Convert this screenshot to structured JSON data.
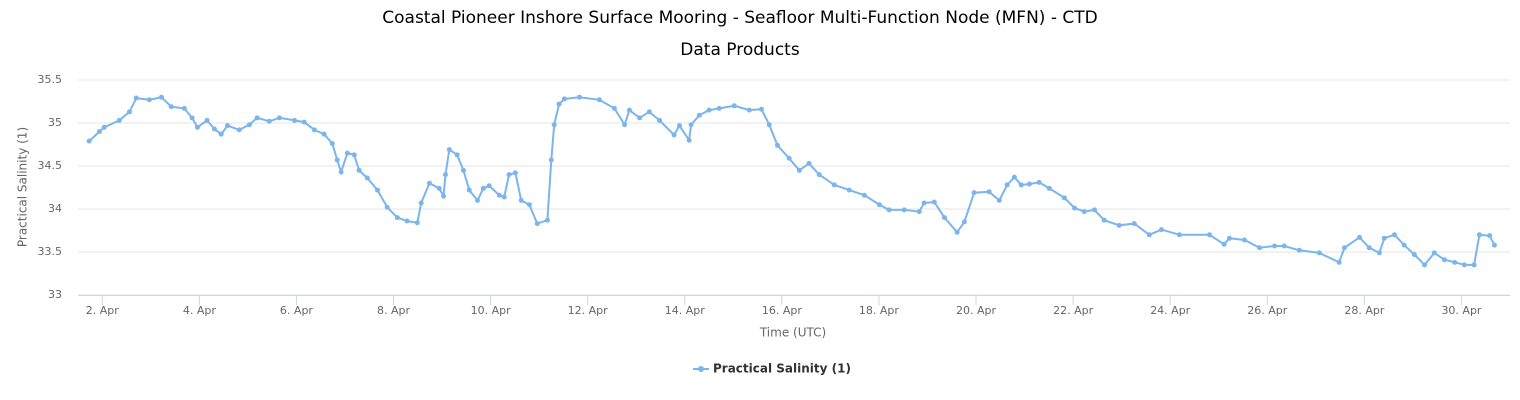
{
  "chart_data": {
    "type": "line",
    "title": "Coastal Pioneer Inshore Surface Mooring - Seafloor Multi-Function Node (MFN) - CTD",
    "subtitle": "Data Products",
    "x_label": "Time (UTC)",
    "y_label": "Practical Salinity (1)",
    "xlim": [
      1.5,
      31
    ],
    "xticks": [
      {
        "value": 2,
        "label": "2. Apr"
      },
      {
        "value": 4,
        "label": "4. Apr"
      },
      {
        "value": 6,
        "label": "6. Apr"
      },
      {
        "value": 8,
        "label": "8. Apr"
      },
      {
        "value": 10,
        "label": "10. Apr"
      },
      {
        "value": 12,
        "label": "12. Apr"
      },
      {
        "value": 14,
        "label": "14. Apr"
      },
      {
        "value": 16,
        "label": "16. Apr"
      },
      {
        "value": 18,
        "label": "18. Apr"
      },
      {
        "value": 20,
        "label": "20. Apr"
      },
      {
        "value": 22,
        "label": "22. Apr"
      },
      {
        "value": 24,
        "label": "24. Apr"
      },
      {
        "value": 26,
        "label": "26. Apr"
      },
      {
        "value": 28,
        "label": "28. Apr"
      },
      {
        "value": 30,
        "label": "30. Apr"
      }
    ],
    "ylim": [
      33,
      35.5
    ],
    "yticks": [
      33,
      33.5,
      34,
      34.5,
      35,
      35.5
    ],
    "grid": true,
    "legend": "bottom",
    "series": [
      {
        "name": "Practical Salinity (1)",
        "color": "#7cb5ec",
        "x": [
          1.73,
          1.94,
          2.04,
          2.35,
          2.56,
          2.7,
          2.97,
          3.22,
          3.42,
          3.69,
          3.85,
          3.96,
          4.16,
          4.31,
          4.45,
          4.58,
          4.82,
          5.03,
          5.19,
          5.44,
          5.65,
          5.96,
          6.16,
          6.37,
          6.57,
          6.74,
          6.84,
          6.92,
          7.05,
          7.19,
          7.29,
          7.46,
          7.67,
          7.87,
          8.08,
          8.28,
          8.49,
          8.57,
          8.74,
          8.94,
          9.03,
          9.07,
          9.15,
          9.31,
          9.44,
          9.56,
          9.73,
          9.85,
          9.97,
          10.18,
          10.28,
          10.38,
          10.51,
          10.63,
          10.8,
          10.96,
          11.17,
          11.25,
          11.31,
          11.41,
          11.52,
          11.83,
          12.24,
          12.55,
          12.76,
          12.86,
          13.07,
          13.27,
          13.48,
          13.78,
          13.89,
          14.09,
          14.13,
          14.3,
          14.5,
          14.71,
          15.02,
          15.33,
          15.58,
          15.74,
          15.91,
          16.15,
          16.36,
          16.56,
          16.77,
          17.08,
          17.39,
          17.7,
          18.01,
          18.21,
          18.52,
          18.83,
          18.93,
          19.14,
          19.35,
          19.61,
          19.76,
          19.96,
          20.27,
          20.48,
          20.64,
          20.79,
          20.93,
          21.1,
          21.3,
          21.51,
          21.82,
          22.03,
          22.23,
          22.44,
          22.64,
          22.95,
          23.26,
          23.57,
          23.82,
          24.19,
          24.81,
          25.11,
          25.22,
          25.53,
          25.84,
          26.15,
          26.35,
          26.66,
          27.07,
          27.48,
          27.59,
          27.9,
          28.1,
          28.31,
          28.41,
          28.62,
          28.82,
          29.03,
          29.24,
          29.44,
          29.65,
          29.86,
          30.06,
          30.26,
          30.37,
          30.58,
          30.68
        ],
        "values": [
          34.79,
          34.9,
          34.95,
          35.03,
          35.13,
          35.29,
          35.27,
          35.3,
          35.19,
          35.17,
          35.06,
          34.95,
          35.03,
          34.93,
          34.87,
          34.97,
          34.92,
          34.98,
          35.06,
          35.02,
          35.06,
          35.03,
          35.01,
          34.92,
          34.87,
          34.76,
          34.57,
          34.43,
          34.65,
          34.63,
          34.45,
          34.36,
          34.22,
          34.02,
          33.9,
          33.86,
          33.84,
          34.07,
          34.3,
          34.24,
          34.15,
          34.4,
          34.69,
          34.63,
          34.45,
          34.22,
          34.1,
          34.24,
          34.27,
          34.16,
          34.14,
          34.4,
          34.42,
          34.1,
          34.05,
          33.83,
          33.87,
          34.57,
          34.98,
          35.22,
          35.28,
          35.3,
          35.27,
          35.17,
          34.98,
          35.15,
          35.06,
          35.13,
          35.03,
          34.86,
          34.97,
          34.8,
          34.98,
          35.09,
          35.15,
          35.17,
          35.2,
          35.15,
          35.16,
          34.98,
          34.74,
          34.59,
          34.45,
          34.53,
          34.4,
          34.28,
          34.22,
          34.16,
          34.05,
          33.99,
          33.99,
          33.97,
          34.07,
          34.08,
          33.9,
          33.73,
          33.85,
          34.19,
          34.2,
          34.1,
          34.28,
          34.37,
          34.28,
          34.29,
          34.31,
          34.24,
          34.13,
          34.01,
          33.97,
          33.99,
          33.87,
          33.81,
          33.83,
          33.7,
          33.76,
          33.7,
          33.7,
          33.59,
          33.66,
          33.64,
          33.55,
          33.57,
          33.57,
          33.52,
          33.49,
          33.38,
          33.55,
          33.67,
          33.55,
          33.49,
          33.66,
          33.7,
          33.58,
          33.47,
          33.35,
          33.49,
          33.41,
          33.38,
          33.35,
          33.35,
          33.7,
          33.69,
          33.58
        ]
      }
    ]
  }
}
